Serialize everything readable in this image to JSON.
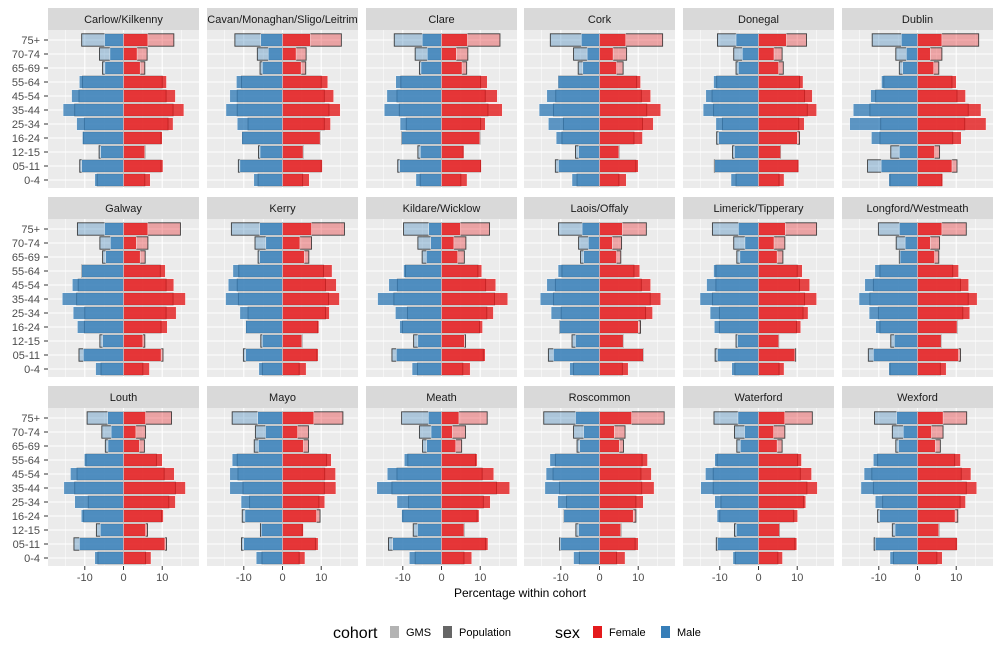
{
  "chart_data": {
    "type": "bar",
    "orientation": "horizontal",
    "layout": "faceted population pyramids, 3 rows x 6 columns",
    "xlabel": "Percentage within cohort",
    "ylabel": "",
    "xlim": [
      -19.5,
      19.5
    ],
    "x_ticks": [
      "-10",
      "0",
      "10"
    ],
    "x_tick_values": [
      -10,
      0,
      10
    ],
    "grid": true,
    "legend_placement": "bottom",
    "age_groups": [
      "75+",
      "70-74",
      "65-69",
      "55-64",
      "45-54",
      "35-44",
      "25-34",
      "16-24",
      "12-15",
      "05-11",
      "0-4"
    ],
    "legend": {
      "cohort_title": "cohort",
      "cohort_items": [
        {
          "label": "GMS",
          "color": "#B3B3B3"
        },
        {
          "label": "Population",
          "color": "#666666"
        }
      ],
      "sex_title": "sex",
      "sex_items": [
        {
          "label": "Female",
          "color": "#E41A1C"
        },
        {
          "label": "Male",
          "color": "#377EB8"
        }
      ]
    },
    "colors": {
      "female": "#E41A1C",
      "male": "#377EB8",
      "gms_outline": "#222222",
      "panel_bg": "#EBEBEB",
      "strip_bg": "#D9D9D9"
    },
    "panels": [
      {
        "name": "Carlow/Kilkenny",
        "gms_male": [
          -10.8,
          -6.2,
          -5.4,
          -10.6,
          -11.5,
          -12.6,
          -10.1,
          -10.4,
          -6.3,
          -11.3,
          -6.8
        ],
        "population_male": [
          -4.9,
          -3.5,
          -4.8,
          -11.4,
          -13.4,
          -15.6,
          -12.1,
          -10.6,
          -5.9,
          -10.8,
          -7.4
        ],
        "gms_female": [
          13.0,
          6.1,
          5.5,
          10.0,
          11.0,
          12.8,
          11.5,
          9.7,
          5.5,
          9.7,
          5.5
        ],
        "population_female": [
          6.3,
          3.5,
          4.3,
          11.1,
          13.4,
          15.6,
          12.8,
          10.0,
          5.5,
          10.2,
          6.9
        ]
      },
      {
        "name": "Cavan/Monaghan/Sligo/Leitrim",
        "gms_male": [
          -12.3,
          -6.5,
          -5.8,
          -10.6,
          -11.7,
          -11.7,
          -8.9,
          -10.3,
          -6.2,
          -11.4,
          -6.3
        ],
        "population_male": [
          -5.6,
          -3.7,
          -5.2,
          -11.9,
          -13.6,
          -14.6,
          -11.7,
          -10.5,
          -5.8,
          -11.0,
          -7.4
        ],
        "gms_female": [
          15.2,
          6.1,
          6.0,
          10.0,
          10.8,
          12.0,
          10.8,
          9.7,
          5.3,
          10.0,
          5.2
        ],
        "population_female": [
          7.2,
          3.5,
          4.8,
          11.7,
          13.2,
          14.9,
          12.4,
          9.7,
          5.3,
          10.3,
          6.9
        ]
      },
      {
        "name": "Clare",
        "gms_male": [
          -12.2,
          -6.8,
          -5.7,
          -10.5,
          -11.5,
          -10.9,
          -9.1,
          -10.3,
          -6.1,
          -11.3,
          -5.5
        ],
        "population_male": [
          -5.0,
          -3.7,
          -5.3,
          -11.8,
          -14.1,
          -14.8,
          -10.7,
          -10.3,
          -5.5,
          -10.8,
          -6.6
        ],
        "gms_female": [
          15.1,
          6.8,
          6.5,
          10.1,
          11.3,
          12.0,
          10.1,
          9.9,
          5.6,
          10.1,
          5.0
        ],
        "population_female": [
          6.7,
          3.8,
          5.3,
          11.8,
          14.4,
          15.7,
          11.3,
          9.9,
          5.8,
          10.3,
          6.6
        ]
      },
      {
        "name": "Cork",
        "gms_male": [
          -12.7,
          -6.7,
          -5.5,
          -10.6,
          -11.3,
          -11.9,
          -9.3,
          -9.7,
          -6.2,
          -11.4,
          -5.8
        ],
        "population_male": [
          -4.7,
          -3.2,
          -4.3,
          -10.7,
          -13.6,
          -15.6,
          -13.2,
          -11.2,
          -5.4,
          -10.6,
          -7.1
        ],
        "gms_female": [
          16.3,
          7.0,
          6.1,
          9.6,
          10.8,
          12.2,
          11.1,
          8.9,
          5.0,
          9.4,
          5.0
        ],
        "population_female": [
          6.8,
          3.5,
          4.4,
          10.6,
          13.2,
          15.8,
          13.9,
          11.1,
          5.0,
          10.0,
          6.9
        ]
      },
      {
        "name": "Donegal",
        "gms_male": [
          -10.6,
          -6.4,
          -5.8,
          -10.8,
          -12.0,
          -11.6,
          -9.3,
          -10.8,
          -6.7,
          -11.4,
          -5.8
        ],
        "population_male": [
          -5.8,
          -4.2,
          -5.2,
          -11.6,
          -13.6,
          -14.3,
          -11.0,
          -10.3,
          -6.2,
          -11.3,
          -7.1
        ],
        "gms_female": [
          12.4,
          6.1,
          6.4,
          10.6,
          11.9,
          12.6,
          10.4,
          10.6,
          5.7,
          10.2,
          5.3
        ],
        "population_female": [
          7.2,
          4.0,
          5.2,
          11.5,
          13.9,
          15.0,
          11.8,
          10.0,
          5.7,
          10.4,
          6.6
        ]
      },
      {
        "name": "Dublin",
        "gms_male": [
          -11.7,
          -5.6,
          -4.7,
          -8.7,
          -10.8,
          -12.3,
          -9.5,
          -9.7,
          -6.9,
          -12.9,
          -7.1
        ],
        "population_male": [
          -4.2,
          -2.9,
          -3.8,
          -9.3,
          -12.1,
          -16.6,
          -17.5,
          -11.9,
          -4.7,
          -9.4,
          -7.4
        ],
        "gms_female": [
          15.8,
          6.3,
          5.5,
          8.9,
          10.2,
          13.1,
          12.2,
          9.1,
          5.7,
          10.2,
          6.3
        ],
        "population_female": [
          6.3,
          3.3,
          4.2,
          10.0,
          12.4,
          16.4,
          17.7,
          11.3,
          4.4,
          8.9,
          6.5
        ]
      },
      {
        "name": "Galway",
        "gms_male": [
          -11.9,
          -6.1,
          -5.4,
          -10.8,
          -11.7,
          -12.1,
          -10.0,
          -10.1,
          -6.1,
          -11.5,
          -5.8
        ],
        "population_male": [
          -4.9,
          -3.4,
          -4.6,
          -10.8,
          -13.2,
          -15.8,
          -13.0,
          -11.9,
          -5.4,
          -10.4,
          -7.2
        ],
        "gms_female": [
          14.7,
          6.3,
          5.6,
          9.5,
          11.0,
          12.8,
          11.0,
          9.7,
          5.5,
          10.2,
          5.0
        ],
        "population_female": [
          6.3,
          3.3,
          4.3,
          10.8,
          13.0,
          16.0,
          13.6,
          11.3,
          5.0,
          9.7,
          6.7
        ]
      },
      {
        "name": "Kerry",
        "gms_male": [
          -13.2,
          -7.1,
          -6.3,
          -11.3,
          -11.7,
          -11.4,
          -8.9,
          -9.4,
          -5.6,
          -10.1,
          -5.2
        ],
        "population_male": [
          -5.9,
          -4.3,
          -5.9,
          -12.8,
          -14.0,
          -14.7,
          -11.0,
          -9.5,
          -5.2,
          -9.5,
          -6.1
        ],
        "gms_female": [
          16.0,
          7.5,
          6.8,
          10.6,
          11.1,
          11.9,
          11.1,
          9.1,
          5.0,
          8.9,
          4.3
        ],
        "population_female": [
          7.5,
          4.5,
          5.6,
          12.8,
          13.9,
          14.7,
          12.1,
          9.4,
          5.0,
          9.2,
          6.1
        ]
      },
      {
        "name": "Kildare/Wicklow",
        "gms_male": [
          -9.8,
          -6.1,
          -5.0,
          -9.3,
          -11.4,
          -12.3,
          -8.8,
          -10.1,
          -7.2,
          -12.8,
          -6.2
        ],
        "population_male": [
          -3.3,
          -2.8,
          -3.9,
          -9.8,
          -13.6,
          -16.5,
          -11.9,
          -10.8,
          -6.1,
          -11.7,
          -7.6
        ],
        "gms_female": [
          12.4,
          6.3,
          5.9,
          9.4,
          11.4,
          13.7,
          11.7,
          9.8,
          6.2,
          10.8,
          5.5
        ],
        "population_female": [
          4.9,
          3.2,
          4.2,
          10.4,
          14.0,
          17.1,
          13.4,
          10.6,
          5.9,
          11.3,
          7.4
        ]
      },
      {
        "name": "Laois/Offaly",
        "gms_male": [
          -10.6,
          -5.4,
          -4.9,
          -9.7,
          -11.4,
          -11.9,
          -9.9,
          -10.3,
          -7.1,
          -13.2,
          -6.7
        ],
        "population_male": [
          -4.5,
          -2.9,
          -4.1,
          -10.7,
          -13.6,
          -15.3,
          -12.5,
          -10.3,
          -6.2,
          -11.9,
          -7.7
        ],
        "gms_female": [
          12.1,
          5.7,
          5.5,
          8.9,
          10.8,
          13.1,
          11.9,
          10.6,
          6.1,
          11.3,
          5.9
        ],
        "population_female": [
          5.9,
          3.3,
          4.4,
          10.4,
          13.2,
          15.8,
          13.7,
          10.0,
          6.1,
          11.3,
          7.4
        ]
      },
      {
        "name": "Limerick/Tipperary",
        "gms_male": [
          -11.9,
          -6.4,
          -5.6,
          -11.0,
          -11.0,
          -11.9,
          -10.1,
          -10.1,
          -5.8,
          -11.2,
          -6.1
        ],
        "population_male": [
          -5.2,
          -3.5,
          -4.8,
          -11.6,
          -13.4,
          -15.1,
          -12.5,
          -11.4,
          -5.4,
          -10.6,
          -6.9
        ],
        "gms_female": [
          15.0,
          6.8,
          6.3,
          10.0,
          10.6,
          11.9,
          11.5,
          9.8,
          5.2,
          9.6,
          5.3
        ],
        "population_female": [
          6.9,
          4.0,
          4.8,
          11.3,
          13.2,
          15.0,
          12.8,
          10.9,
          5.2,
          9.4,
          6.6
        ]
      },
      {
        "name": "Longford/Westmeath",
        "gms_male": [
          -10.1,
          -5.5,
          -4.7,
          -9.7,
          -11.4,
          -12.3,
          -10.1,
          -9.7,
          -6.9,
          -12.7,
          -7.1
        ],
        "population_male": [
          -4.7,
          -3.2,
          -4.5,
          -11.0,
          -13.6,
          -15.1,
          -12.5,
          -10.8,
          -6.0,
          -11.4,
          -7.4
        ],
        "gms_female": [
          12.6,
          5.7,
          5.5,
          9.1,
          11.1,
          13.1,
          11.7,
          10.2,
          6.1,
          11.1,
          5.9
        ],
        "population_female": [
          6.3,
          3.3,
          4.4,
          10.6,
          13.2,
          15.4,
          13.5,
          10.2,
          6.1,
          10.6,
          7.4
        ]
      },
      {
        "name": "Louth",
        "gms_male": [
          -9.4,
          -5.6,
          -4.7,
          -9.7,
          -12.0,
          -12.6,
          -9.1,
          -10.3,
          -7.0,
          -12.8,
          -6.6
        ],
        "population_male": [
          -4.1,
          -3.2,
          -4.0,
          -10.1,
          -13.7,
          -15.4,
          -12.6,
          -10.9,
          -6.0,
          -11.4,
          -7.4
        ],
        "gms_female": [
          12.4,
          5.7,
          5.4,
          8.5,
          10.5,
          13.4,
          11.7,
          9.8,
          6.2,
          11.1,
          5.7
        ],
        "population_female": [
          5.7,
          3.2,
          4.1,
          10.0,
          13.1,
          16.0,
          13.4,
          10.3,
          5.7,
          10.7,
          7.1
        ]
      },
      {
        "name": "Mayo",
        "gms_male": [
          -13.0,
          -7.0,
          -7.3,
          -11.7,
          -11.5,
          -10.2,
          -8.5,
          -10.4,
          -5.7,
          -10.6,
          -5.3
        ],
        "population_male": [
          -6.4,
          -4.4,
          -6.2,
          -13.0,
          -13.6,
          -13.6,
          -10.7,
          -9.7,
          -5.5,
          -10.0,
          -6.8
        ],
        "gms_female": [
          15.6,
          6.7,
          6.7,
          11.4,
          10.9,
          10.8,
          9.4,
          9.7,
          5.1,
          8.5,
          4.3
        ],
        "population_female": [
          8.1,
          3.9,
          5.4,
          12.6,
          13.7,
          13.8,
          10.9,
          8.8,
          5.4,
          9.2,
          5.8
        ]
      },
      {
        "name": "Meath",
        "gms_male": [
          -10.3,
          -5.7,
          -4.9,
          -8.7,
          -11.5,
          -12.8,
          -8.5,
          -10.0,
          -7.3,
          -13.7,
          -6.8
        ],
        "population_male": [
          -3.4,
          -2.7,
          -3.8,
          -9.6,
          -14.0,
          -16.7,
          -11.5,
          -10.3,
          -6.2,
          -12.6,
          -8.3
        ],
        "gms_female": [
          11.8,
          6.2,
          5.2,
          8.8,
          10.5,
          14.2,
          10.8,
          9.2,
          5.8,
          11.4,
          5.8
        ],
        "population_female": [
          4.5,
          2.8,
          3.7,
          9.2,
          13.5,
          17.6,
          12.6,
          9.7,
          5.8,
          12.0,
          7.8
        ]
      },
      {
        "name": "Roscommon",
        "gms_male": [
          -14.4,
          -6.7,
          -5.8,
          -11.4,
          -12.0,
          -10.3,
          -8.5,
          -9.2,
          -6.1,
          -10.3,
          -5.2
        ],
        "population_male": [
          -6.2,
          -4.1,
          -5.1,
          -12.8,
          -13.8,
          -14.1,
          -10.8,
          -9.2,
          -5.4,
          -10.1,
          -6.7
        ],
        "gms_female": [
          16.7,
          6.6,
          6.2,
          11.0,
          10.7,
          10.9,
          9.4,
          9.4,
          5.5,
          9.2,
          4.4
        ],
        "population_female": [
          8.3,
          3.8,
          5.1,
          12.4,
          13.4,
          14.1,
          11.3,
          8.7,
          5.5,
          10.0,
          6.6
        ]
      },
      {
        "name": "Waterford",
        "gms_male": [
          -11.5,
          -6.2,
          -5.6,
          -10.7,
          -11.7,
          -11.7,
          -9.7,
          -10.0,
          -6.2,
          -10.9,
          -6.0
        ],
        "population_male": [
          -5.3,
          -3.6,
          -4.7,
          -11.3,
          -13.7,
          -14.9,
          -11.3,
          -10.7,
          -5.7,
          -10.6,
          -6.6
        ],
        "gms_female": [
          13.9,
          6.8,
          6.1,
          10.1,
          10.8,
          12.5,
          11.6,
          9.1,
          5.4,
          9.4,
          5.0
        ],
        "population_female": [
          6.8,
          3.9,
          4.8,
          11.1,
          13.7,
          15.2,
          12.2,
          10.1,
          5.4,
          9.9,
          6.2
        ]
      },
      {
        "name": "Wexford",
        "gms_male": [
          -11.1,
          -6.5,
          -5.6,
          -10.3,
          -11.8,
          -11.4,
          -9.0,
          -10.3,
          -6.5,
          -11.2,
          -6.2
        ],
        "population_male": [
          -5.4,
          -3.7,
          -4.9,
          -11.4,
          -13.8,
          -14.6,
          -10.9,
          -9.8,
          -5.8,
          -10.9,
          -7.1
        ],
        "gms_female": [
          12.7,
          6.6,
          5.9,
          9.6,
          11.3,
          12.6,
          11.0,
          10.4,
          5.5,
          10.0,
          5.0
        ],
        "population_female": [
          6.6,
          3.6,
          4.6,
          11.1,
          13.8,
          15.3,
          12.4,
          9.7,
          5.5,
          10.3,
          6.4
        ]
      }
    ]
  }
}
